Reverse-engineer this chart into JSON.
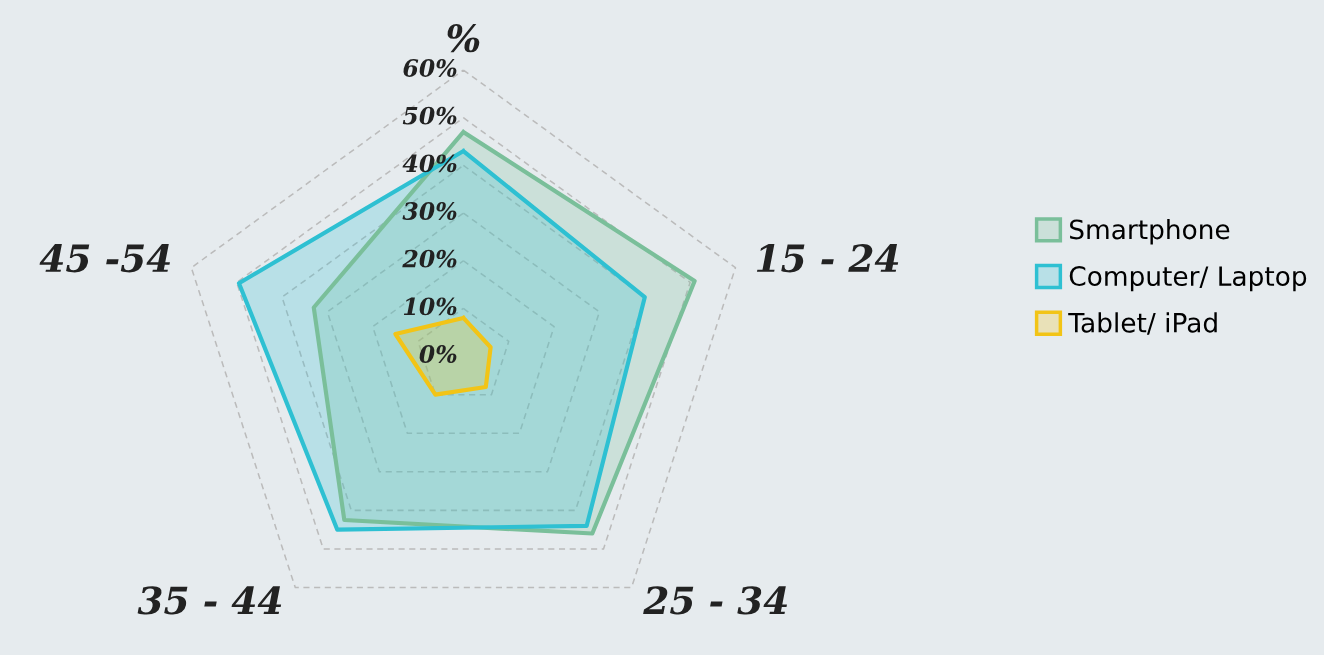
{
  "chart_data": {
    "type": "radar",
    "categories": [
      "%",
      "15 - 24",
      "25 - 34",
      "35 - 44",
      "45 -54"
    ],
    "series": [
      {
        "name": "Smartphone",
        "color": "#7abf9a",
        "values": [
          47,
          51,
          46,
          42.5,
          33
        ]
      },
      {
        "name": "Computer/ Laptop",
        "color": "#2ec0d2",
        "values": [
          43,
          40,
          44,
          45,
          49.5
        ]
      },
      {
        "name": "Tablet/ iPad",
        "color": "#f2c416",
        "values": [
          8,
          6,
          8,
          10,
          15
        ]
      }
    ],
    "ylim": [
      0,
      60
    ],
    "yticks": [
      {
        "value": 0,
        "label": "0%"
      },
      {
        "value": 10,
        "label": "10%"
      },
      {
        "value": 20,
        "label": "20%"
      },
      {
        "value": 30,
        "label": "30%"
      },
      {
        "value": 40,
        "label": "40%"
      },
      {
        "value": 50,
        "label": "50%"
      },
      {
        "value": 60,
        "label": "60%"
      }
    ],
    "grid": true,
    "legend": "right",
    "line_style": "solid",
    "marker": "none"
  }
}
